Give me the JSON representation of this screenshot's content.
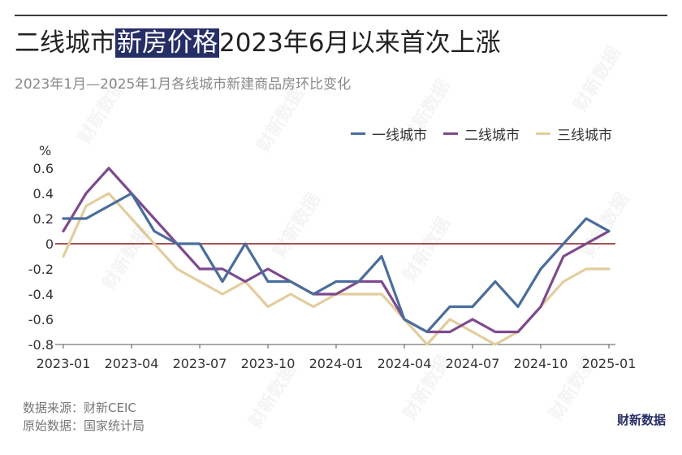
{
  "title": {
    "normal_prefix": "二线城市",
    "highlight": "新房价格",
    "normal_suffix": "2023年6月以来首次上涨"
  },
  "subtitle": "2023年1月—2025年1月各线城市新建商品房环比变化",
  "unit": "%",
  "source": {
    "line1": "数据来源：财新CEIC",
    "line2": "原始数据：国家统计局"
  },
  "brand": "财新数据",
  "watermark": "财新数据",
  "colors": {
    "highlight_bg": "#262e66",
    "zero_line": "#8b1a1a"
  },
  "chart_data": {
    "type": "line",
    "x": [
      "2023-01",
      "2023-02",
      "2023-03",
      "2023-04",
      "2023-05",
      "2023-06",
      "2023-07",
      "2023-08",
      "2023-09",
      "2023-10",
      "2023-11",
      "2023-12",
      "2024-01",
      "2024-02",
      "2024-03",
      "2024-04",
      "2024-05",
      "2024-06",
      "2024-07",
      "2024-08",
      "2024-09",
      "2024-10",
      "2024-11",
      "2024-12",
      "2025-01"
    ],
    "x_tick_labels": [
      "2023-01",
      "2023-04",
      "2023-07",
      "2023-10",
      "2024-01",
      "2024-04",
      "2024-07",
      "2024-10",
      "2025-01"
    ],
    "x_tick_indices": [
      0,
      3,
      6,
      9,
      12,
      15,
      18,
      21,
      24
    ],
    "y_ticks": [
      0.6,
      0.4,
      0.2,
      0,
      -0.2,
      -0.4,
      -0.6,
      -0.8
    ],
    "y_tick_labels": [
      "0.6",
      "0.4",
      "0.2",
      "0",
      "-0.2",
      "-0.4",
      "-0.6",
      "-0.8"
    ],
    "ylim": [
      -0.8,
      0.6
    ],
    "grid": false,
    "legend_position": "top-right",
    "series": [
      {
        "name": "一线城市",
        "color": "#4a6d9c",
        "values": [
          0.2,
          0.2,
          0.3,
          0.4,
          0.1,
          0.0,
          0.0,
          -0.3,
          0.0,
          -0.3,
          -0.3,
          -0.4,
          -0.3,
          -0.3,
          -0.1,
          -0.6,
          -0.7,
          -0.5,
          -0.5,
          -0.3,
          -0.5,
          -0.2,
          0.0,
          0.2,
          0.1
        ]
      },
      {
        "name": "二线城市",
        "color": "#7d4a8f",
        "values": [
          0.1,
          0.4,
          0.6,
          0.4,
          0.2,
          0.0,
          -0.2,
          -0.2,
          -0.3,
          -0.2,
          -0.3,
          -0.4,
          -0.4,
          -0.3,
          -0.3,
          -0.6,
          -0.7,
          -0.7,
          -0.6,
          -0.7,
          -0.7,
          -0.5,
          -0.1,
          0.0,
          0.1
        ]
      },
      {
        "name": "三线城市",
        "color": "#e3cd9e",
        "values": [
          -0.1,
          0.3,
          0.4,
          0.2,
          0.0,
          -0.2,
          -0.3,
          -0.4,
          -0.3,
          -0.5,
          -0.4,
          -0.5,
          -0.4,
          -0.4,
          -0.4,
          -0.6,
          -0.8,
          -0.6,
          -0.7,
          -0.8,
          -0.7,
          -0.5,
          -0.3,
          -0.2,
          -0.2
        ]
      }
    ]
  }
}
